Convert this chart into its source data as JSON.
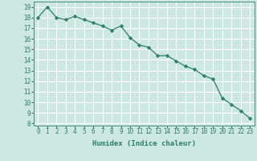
{
  "x": [
    0,
    1,
    2,
    3,
    4,
    5,
    6,
    7,
    8,
    9,
    10,
    11,
    12,
    13,
    14,
    15,
    16,
    17,
    18,
    19,
    20,
    21,
    22,
    23
  ],
  "y": [
    18.0,
    19.0,
    18.0,
    17.8,
    18.1,
    17.8,
    17.5,
    17.2,
    16.8,
    17.2,
    16.1,
    15.4,
    15.2,
    14.4,
    14.4,
    13.9,
    13.4,
    13.1,
    12.5,
    12.2,
    10.4,
    9.8,
    9.2,
    8.5
  ],
  "line_color": "#2e7d6e",
  "marker": "D",
  "marker_size": 2.2,
  "bg_color": "#cce8e0",
  "grid_color": "#ffffff",
  "xlabel": "Humidex (Indice chaleur)",
  "xlim": [
    -0.5,
    23.5
  ],
  "ylim": [
    7.8,
    19.5
  ],
  "yticks": [
    8,
    9,
    10,
    11,
    12,
    13,
    14,
    15,
    16,
    17,
    18,
    19
  ],
  "xticks": [
    0,
    1,
    2,
    3,
    4,
    5,
    6,
    7,
    8,
    9,
    10,
    11,
    12,
    13,
    14,
    15,
    16,
    17,
    18,
    19,
    20,
    21,
    22,
    23
  ],
  "tick_fontsize": 5.5,
  "xlabel_fontsize": 6.5,
  "tick_color": "#2e7d6e"
}
